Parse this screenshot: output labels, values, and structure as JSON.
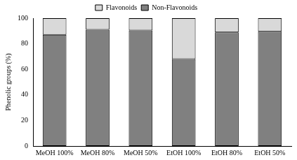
{
  "chart_data": {
    "type": "bar",
    "y_label": "Phenolic groups (%)",
    "categories": [
      "MeOH 100%",
      "MeOH 80%",
      "MeOH 50%",
      "EtOH 100%",
      "EtOH 80%",
      "EtOH 50%"
    ],
    "series": [
      {
        "name": "Non-Flavonoids",
        "color": "#808080",
        "values": [
          87,
          91,
          90.5,
          68,
          89,
          89.5
        ]
      },
      {
        "name": "Flavonoids",
        "color": "#d9d9d9",
        "values": [
          13,
          9,
          9.5,
          32,
          11,
          10.5
        ]
      }
    ],
    "ylim": [
      0,
      100
    ],
    "yticks": [
      0,
      20,
      40,
      60,
      80,
      100
    ],
    "stacked": true,
    "grid": false,
    "legend": "top"
  }
}
